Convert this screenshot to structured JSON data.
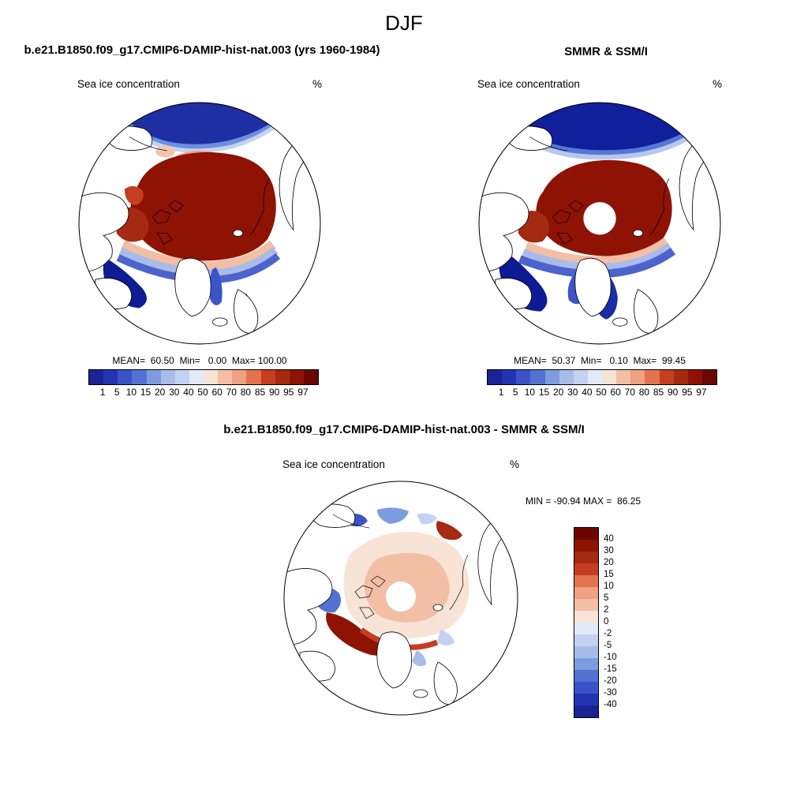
{
  "header": {
    "title": "DJF"
  },
  "panels": {
    "model": {
      "title": "b.e21.B1850.f09_g17.CMIP6-DAMIP-hist-nat.003 (yrs 1960-1984)",
      "field_label": "Sea ice concentration",
      "units": "%",
      "stats": "MEAN=  60.50  Min=   0.00  Max= 100.00"
    },
    "obs": {
      "title": "SMMR & SSM/I",
      "field_label": "Sea ice concentration",
      "units": "%",
      "stats": "MEAN=  50.37  Min=   0.10  Max=  99.45"
    },
    "diff": {
      "title": "b.e21.B1850.f09_g17.CMIP6-DAMIP-hist-nat.003 - SMMR & SSM/I",
      "field_label": "Sea ice concentration",
      "units": "%",
      "stats": "MIN = -90.94 MAX =  86.25"
    }
  },
  "colorbars": {
    "concentration": {
      "ticks": [
        "1",
        "5",
        "10",
        "15",
        "20",
        "30",
        "40",
        "50",
        "60",
        "70",
        "80",
        "85",
        "90",
        "95",
        "97"
      ],
      "colors": [
        "#1a2494",
        "#2433b4",
        "#3a53c8",
        "#5272d2",
        "#7d9ce0",
        "#a9bce9",
        "#c3d2f2",
        "#e2eaf8",
        "#f8e4d6",
        "#f3bfa4",
        "#efa181",
        "#e3734f",
        "#c63d22",
        "#a62911",
        "#8e1305",
        "#6b0701"
      ]
    },
    "difference": {
      "ticks": [
        "40",
        "30",
        "20",
        "15",
        "10",
        "5",
        "2",
        "0",
        "-2",
        "-5",
        "-10",
        "-15",
        "-20",
        "-30",
        "-40"
      ],
      "colors": [
        "#6b0701",
        "#8e1305",
        "#a62911",
        "#c63d22",
        "#e3734f",
        "#efa181",
        "#f3bfa4",
        "#f8e4d6",
        "#e2eaf8",
        "#c3d2f2",
        "#a9bce9",
        "#7d9ce0",
        "#5272d2",
        "#3a53c8",
        "#2433b4",
        "#1a2494"
      ]
    }
  },
  "chart_data": {
    "figure_title": "DJF",
    "type": "heatmap",
    "maps": [
      {
        "title": "b.e21.B1850.f09_g17.CMIP6-DAMIP-hist-nat.003 (yrs 1960-1984)",
        "variable": "Sea ice concentration",
        "units": "%",
        "projection": "north polar stereographic",
        "mean": 60.5,
        "min": 0.0,
        "max": 100.0,
        "colorbar_levels": [
          1,
          5,
          10,
          15,
          20,
          30,
          40,
          50,
          60,
          70,
          80,
          85,
          90,
          95,
          97
        ],
        "colorbar_orientation": "horizontal",
        "pattern": "near-100% concentration (dark red) over central Arctic; sharp blue gradient at ice edge in Bering Sea, Labrador Sea and Nordic Seas"
      },
      {
        "title": "SMMR & SSM/I",
        "variable": "Sea ice concentration",
        "units": "%",
        "projection": "north polar stereographic",
        "mean": 50.37,
        "min": 0.1,
        "max": 99.45,
        "colorbar_levels": [
          1,
          5,
          10,
          15,
          20,
          30,
          40,
          50,
          60,
          70,
          80,
          85,
          90,
          95,
          97
        ],
        "colorbar_orientation": "horizontal",
        "pattern": "satellite observations with circular pole data hole at map center; extensive low-concentration (blue) Bering Sea and North Atlantic"
      },
      {
        "title": "b.e21.B1850.f09_g17.CMIP6-DAMIP-hist-nat.003 - SMMR & SSM/I",
        "variable": "Sea ice concentration",
        "units": "%",
        "projection": "north polar stereographic",
        "min": -90.94,
        "max": 86.25,
        "colorbar_levels": [
          40,
          30,
          20,
          15,
          10,
          5,
          2,
          0,
          -2,
          -5,
          -10,
          -15,
          -20,
          -30,
          -40
        ],
        "colorbar_orientation": "vertical-right",
        "pattern": "weak positive bias (pale red) over central Arctic; strong positive bias (dark red) along Labrador/Greenland ice edge; negative bias (blue) patches on Pacific side"
      }
    ]
  }
}
